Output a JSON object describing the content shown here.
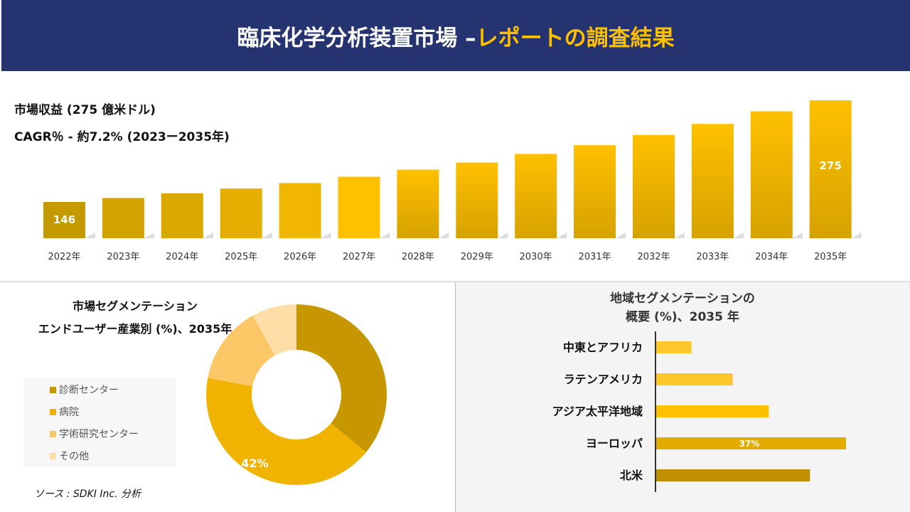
{
  "header": {
    "title_main": "臨床化学分析装置市場 –",
    "title_accent": "レポートの調査結果"
  },
  "summary": {
    "revenue": "市場収益 (275 億米ドル)",
    "cagr": "CAGR％ - 約7.2% (2023ー2035年)"
  },
  "chart_data": [
    {
      "type": "bar",
      "categories": [
        "2022年",
        "2023年",
        "2024年",
        "2025年",
        "2026年",
        "2027年",
        "2028年",
        "2029年",
        "2030年",
        "2031年",
        "2032年",
        "2033年",
        "2034年",
        "2035年"
      ],
      "values": [
        146,
        151,
        157,
        163,
        170,
        178,
        187,
        196,
        207,
        218,
        231,
        245,
        261,
        275
      ],
      "data_labels": {
        "0": "146",
        "13": "275"
      },
      "colors": [
        "#c49a00",
        "#d3a300",
        "#dba800",
        "#e6ae00",
        "#f0b600",
        "#ffc000",
        "#ffc000",
        "#ffc000",
        "#ffc000",
        "#ffc000",
        "#ffc000",
        "#ffc000",
        "#ffc000",
        "#ffc000"
      ]
    },
    {
      "type": "pie",
      "title_line1": "市場セグメンテーション",
      "title_line2": "エンドユーザー産業別 (%)、2035年",
      "labels": [
        "診断センター",
        "病院",
        "学術研究センター",
        "その他"
      ],
      "values": [
        36,
        42,
        14,
        8
      ],
      "data_labels": {
        "1": "42%"
      },
      "colors": [
        "#c79700",
        "#f0b400",
        "#fcc766",
        "#fedda6"
      ]
    },
    {
      "type": "bar",
      "orientation": "horizontal",
      "title_line1": "地域セグメンテーションの",
      "title_line2": "概要 (%)、2035 年",
      "categories": [
        "中東とアフリカ",
        "ラテンアメリカ",
        "アジア太平洋地域",
        "ヨーロッパ",
        "北米"
      ],
      "values": [
        7,
        15,
        22,
        37,
        30
      ],
      "data_labels": {
        "3": "37%"
      },
      "colors": [
        "#ffc72c",
        "#ffc72c",
        "#ffc000",
        "#e2ab00",
        "#bf8f00"
      ]
    }
  ],
  "source": "ソース : SDKI Inc. 分析"
}
